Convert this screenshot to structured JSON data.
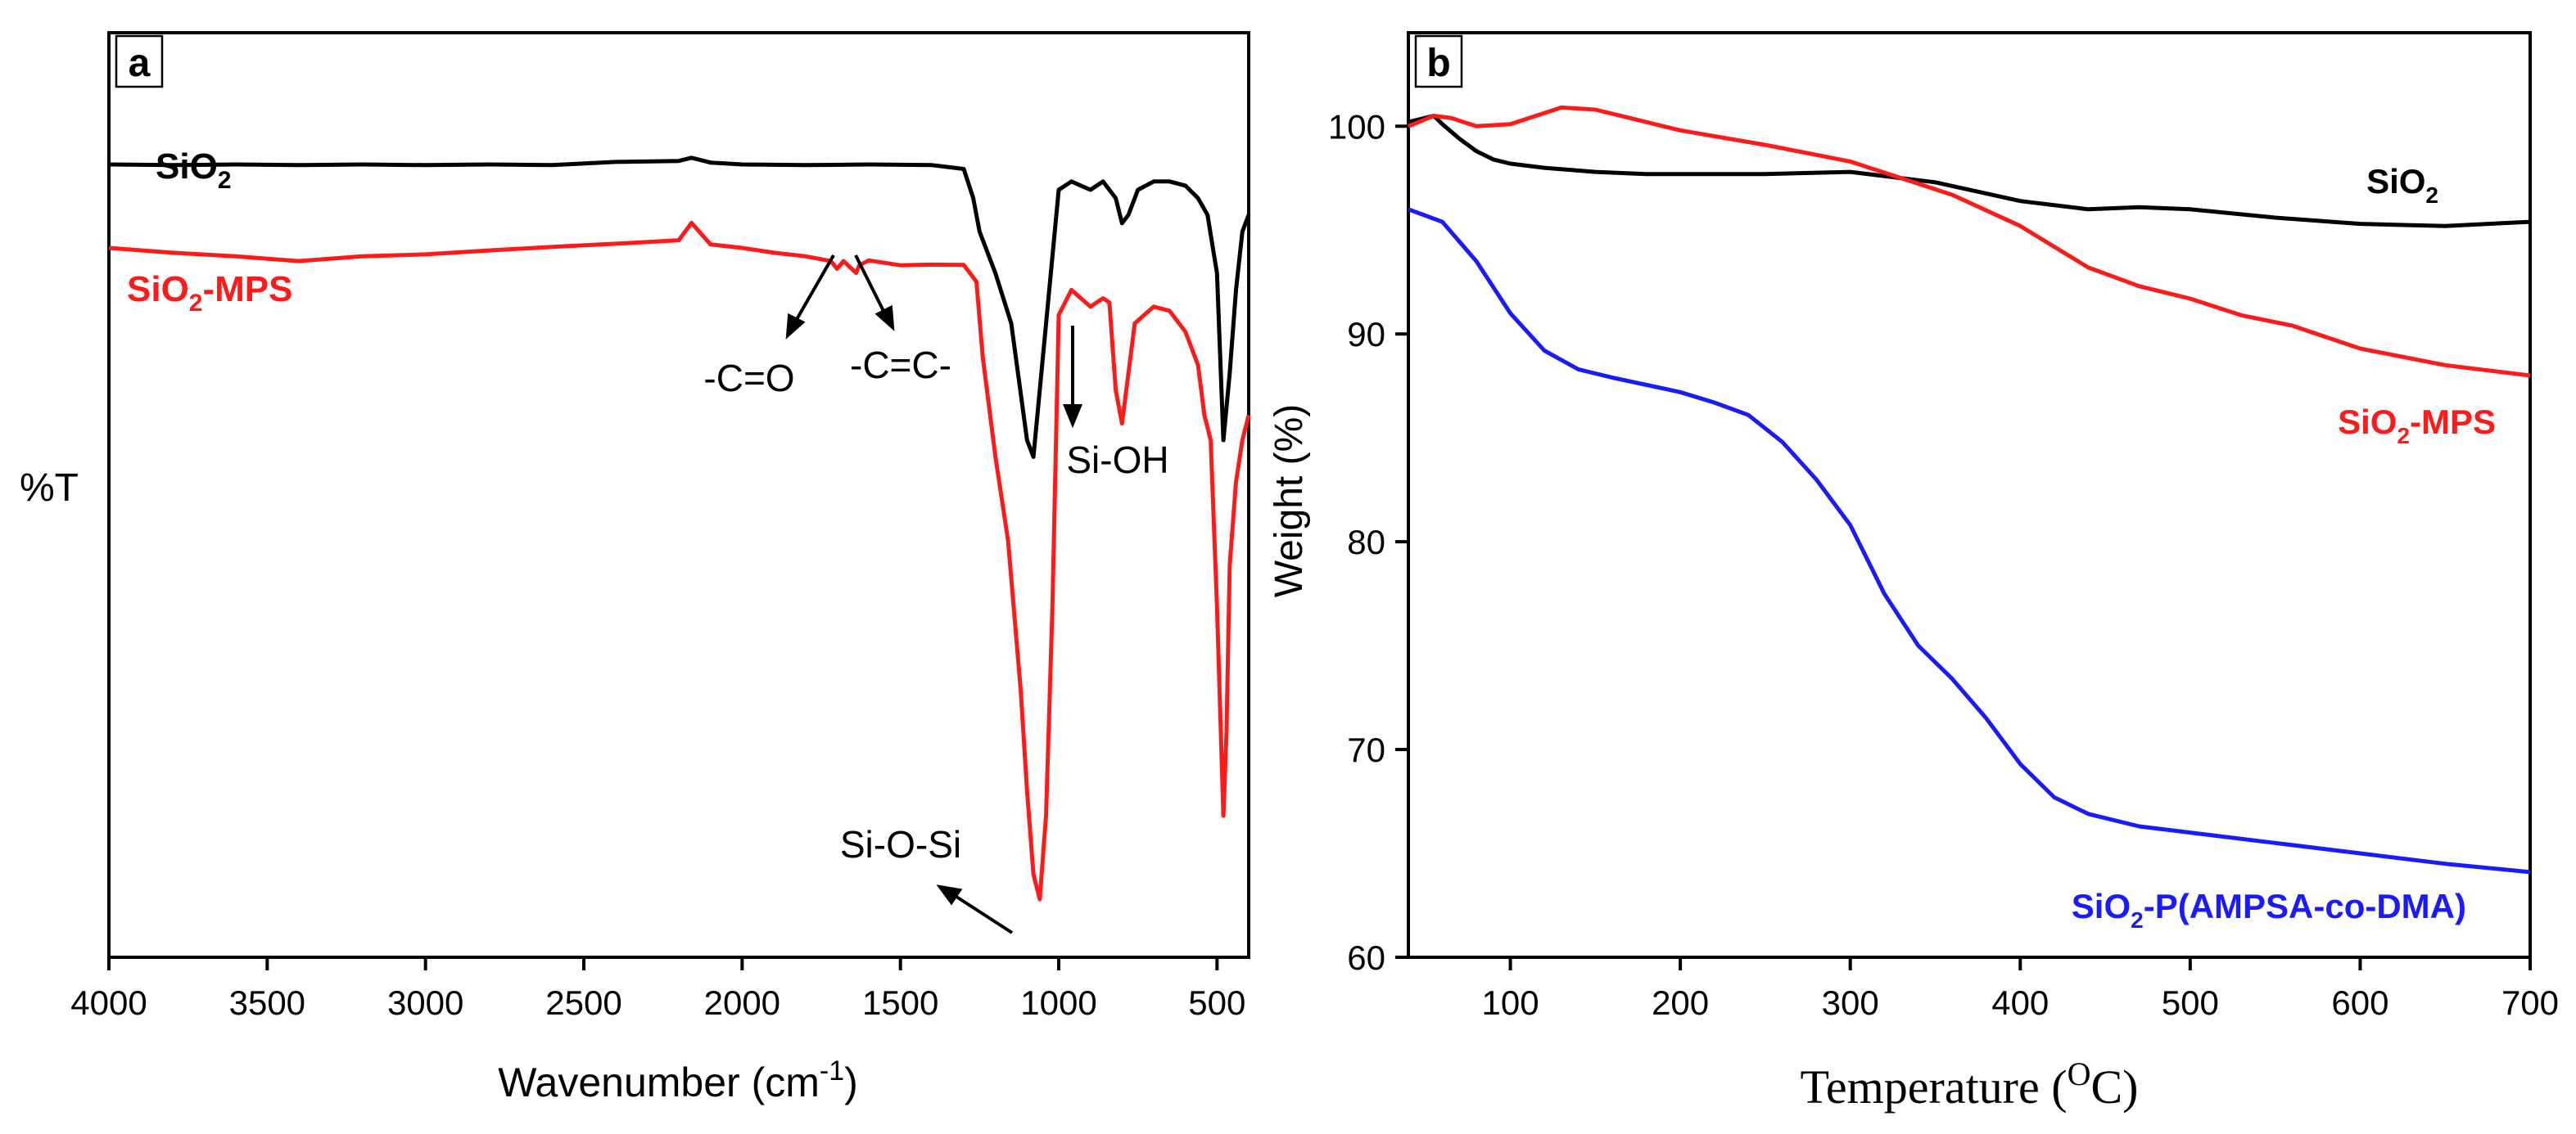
{
  "colors": {
    "sio2": "#000000",
    "sio2_mps": "#ff1a1a",
    "sio2_p": "#1a1aff",
    "axis": "#000000"
  },
  "panel_a": {
    "label": "a",
    "ylabel": "%T",
    "xlabel_main": "Wavenumber (cm",
    "xlabel_sup": "-1",
    "xlabel_end": ")",
    "series_labels": [
      {
        "pre": "SiO",
        "sub": "2",
        "post": ""
      },
      {
        "pre": "SiO",
        "sub": "2",
        "post": "-MPS"
      }
    ],
    "annotations": [
      "-C=O",
      "-C=C-",
      "Si-OH",
      "Si-O-Si"
    ]
  },
  "panel_b": {
    "label": "b",
    "ylabel": "Weight (%)",
    "xlabel_main": "Temperature (",
    "xlabel_sup": "O",
    "xlabel_end": "C)",
    "series_labels": [
      {
        "pre": "SiO",
        "sub": "2",
        "post": ""
      },
      {
        "pre": "SiO",
        "sub": "2",
        "post": "-MPS"
      },
      {
        "pre": "SiO",
        "sub": "2",
        "post": "-P(AMPSA-co-DMA)"
      }
    ]
  },
  "chart_data": [
    {
      "type": "line",
      "xlabel": "Wavenumber (cm-1)",
      "ylabel": "%T",
      "xlim": [
        4000,
        400
      ],
      "x_ticks": [
        4000,
        3500,
        3000,
        2500,
        2000,
        1500,
        1000,
        500
      ],
      "grid": false,
      "series": [
        {
          "name": "SiO2",
          "color": "#000000",
          "x": [
            4000,
            3800,
            3600,
            3400,
            3200,
            3000,
            2800,
            2600,
            2400,
            2200,
            2160,
            2100,
            2000,
            1800,
            1600,
            1400,
            1300,
            1270,
            1250,
            1200,
            1150,
            1100,
            1080,
            1050,
            1000,
            960,
            900,
            860,
            820,
            800,
            780,
            750,
            700,
            650,
            600,
            560,
            530,
            500,
            480,
            460,
            440,
            420,
            400
          ],
          "y": [
            93,
            93,
            93,
            93,
            93,
            93,
            93,
            93,
            93.3,
            93.5,
            93.8,
            93.3,
            93,
            93,
            93,
            93,
            92.5,
            89,
            85,
            80,
            74,
            60,
            58,
            70,
            90,
            91,
            90,
            91,
            89,
            86,
            87,
            90,
            91,
            91,
            90.5,
            89,
            87,
            80,
            60,
            68,
            78,
            85,
            87
          ]
        },
        {
          "name": "SiO2-MPS",
          "color": "#ff1a1a",
          "x": [
            4000,
            3800,
            3600,
            3400,
            3200,
            3000,
            2800,
            2600,
            2400,
            2200,
            2160,
            2100,
            2000,
            1900,
            1800,
            1720,
            1700,
            1680,
            1640,
            1630,
            1600,
            1500,
            1400,
            1300,
            1260,
            1240,
            1200,
            1160,
            1120,
            1100,
            1080,
            1060,
            1040,
            1020,
            1000,
            960,
            900,
            860,
            840,
            820,
            800,
            780,
            760,
            700,
            650,
            600,
            560,
            540,
            520,
            500,
            480,
            470,
            460,
            440,
            420,
            400
          ],
          "y": [
            83,
            82.5,
            82,
            81.5,
            82,
            82.3,
            82.7,
            83.2,
            83.5,
            84,
            86,
            83.5,
            83,
            82.5,
            82,
            81.5,
            80.5,
            81.5,
            80,
            81,
            81.5,
            81,
            81,
            81,
            79,
            70,
            58,
            48,
            30,
            18,
            8,
            5,
            15,
            40,
            75,
            78,
            76,
            77,
            76.5,
            66,
            62,
            68,
            74,
            76,
            75.5,
            73,
            69,
            63,
            60,
            40,
            15,
            25,
            45,
            55,
            60,
            63
          ]
        }
      ]
    },
    {
      "type": "line",
      "xlabel": "Temperature (OC)",
      "ylabel": "Weight (%)",
      "xlim": [
        40,
        700
      ],
      "ylim": [
        60,
        104.5
      ],
      "x_ticks": [
        100,
        200,
        300,
        400,
        500,
        600,
        700
      ],
      "y_ticks": [
        60,
        70,
        80,
        90,
        100
      ],
      "grid": false,
      "series": [
        {
          "name": "SiO2",
          "color": "#000000",
          "x": [
            40,
            50,
            55,
            60,
            70,
            80,
            90,
            100,
            120,
            150,
            180,
            200,
            250,
            300,
            350,
            400,
            440,
            470,
            500,
            550,
            600,
            650,
            700
          ],
          "y": [
            100.2,
            100.4,
            100.5,
            100.1,
            99.4,
            98.8,
            98.4,
            98.2,
            98.0,
            97.8,
            97.7,
            97.7,
            97.7,
            97.8,
            97.3,
            96.4,
            96.0,
            96.1,
            96.0,
            95.6,
            95.3,
            95.2,
            95.4
          ]
        },
        {
          "name": "SiO2-MPS",
          "color": "#ff1a1a",
          "x": [
            40,
            55,
            65,
            80,
            100,
            115,
            130,
            150,
            170,
            200,
            250,
            300,
            330,
            360,
            400,
            420,
            440,
            470,
            500,
            530,
            560,
            600,
            650,
            700
          ],
          "y": [
            100.0,
            100.5,
            100.4,
            100.0,
            100.1,
            100.5,
            100.9,
            100.8,
            100.4,
            99.8,
            99.1,
            98.3,
            97.5,
            96.7,
            95.2,
            94.2,
            93.2,
            92.3,
            91.7,
            90.9,
            90.4,
            89.3,
            88.5,
            88.0
          ]
        },
        {
          "name": "SiO2-P(AMPSA-co-DMA)",
          "color": "#1a1aff",
          "x": [
            40,
            60,
            80,
            100,
            120,
            140,
            160,
            200,
            220,
            240,
            260,
            280,
            300,
            320,
            340,
            360,
            380,
            400,
            420,
            440,
            470,
            500,
            550,
            600,
            650,
            700
          ],
          "y": [
            96.0,
            95.4,
            93.5,
            91.0,
            89.2,
            88.3,
            87.9,
            87.2,
            86.7,
            86.1,
            84.8,
            83.0,
            80.8,
            77.5,
            75.0,
            73.4,
            71.5,
            69.3,
            67.7,
            66.9,
            66.3,
            66.0,
            65.5,
            65.0,
            64.5,
            64.1
          ]
        }
      ]
    }
  ]
}
